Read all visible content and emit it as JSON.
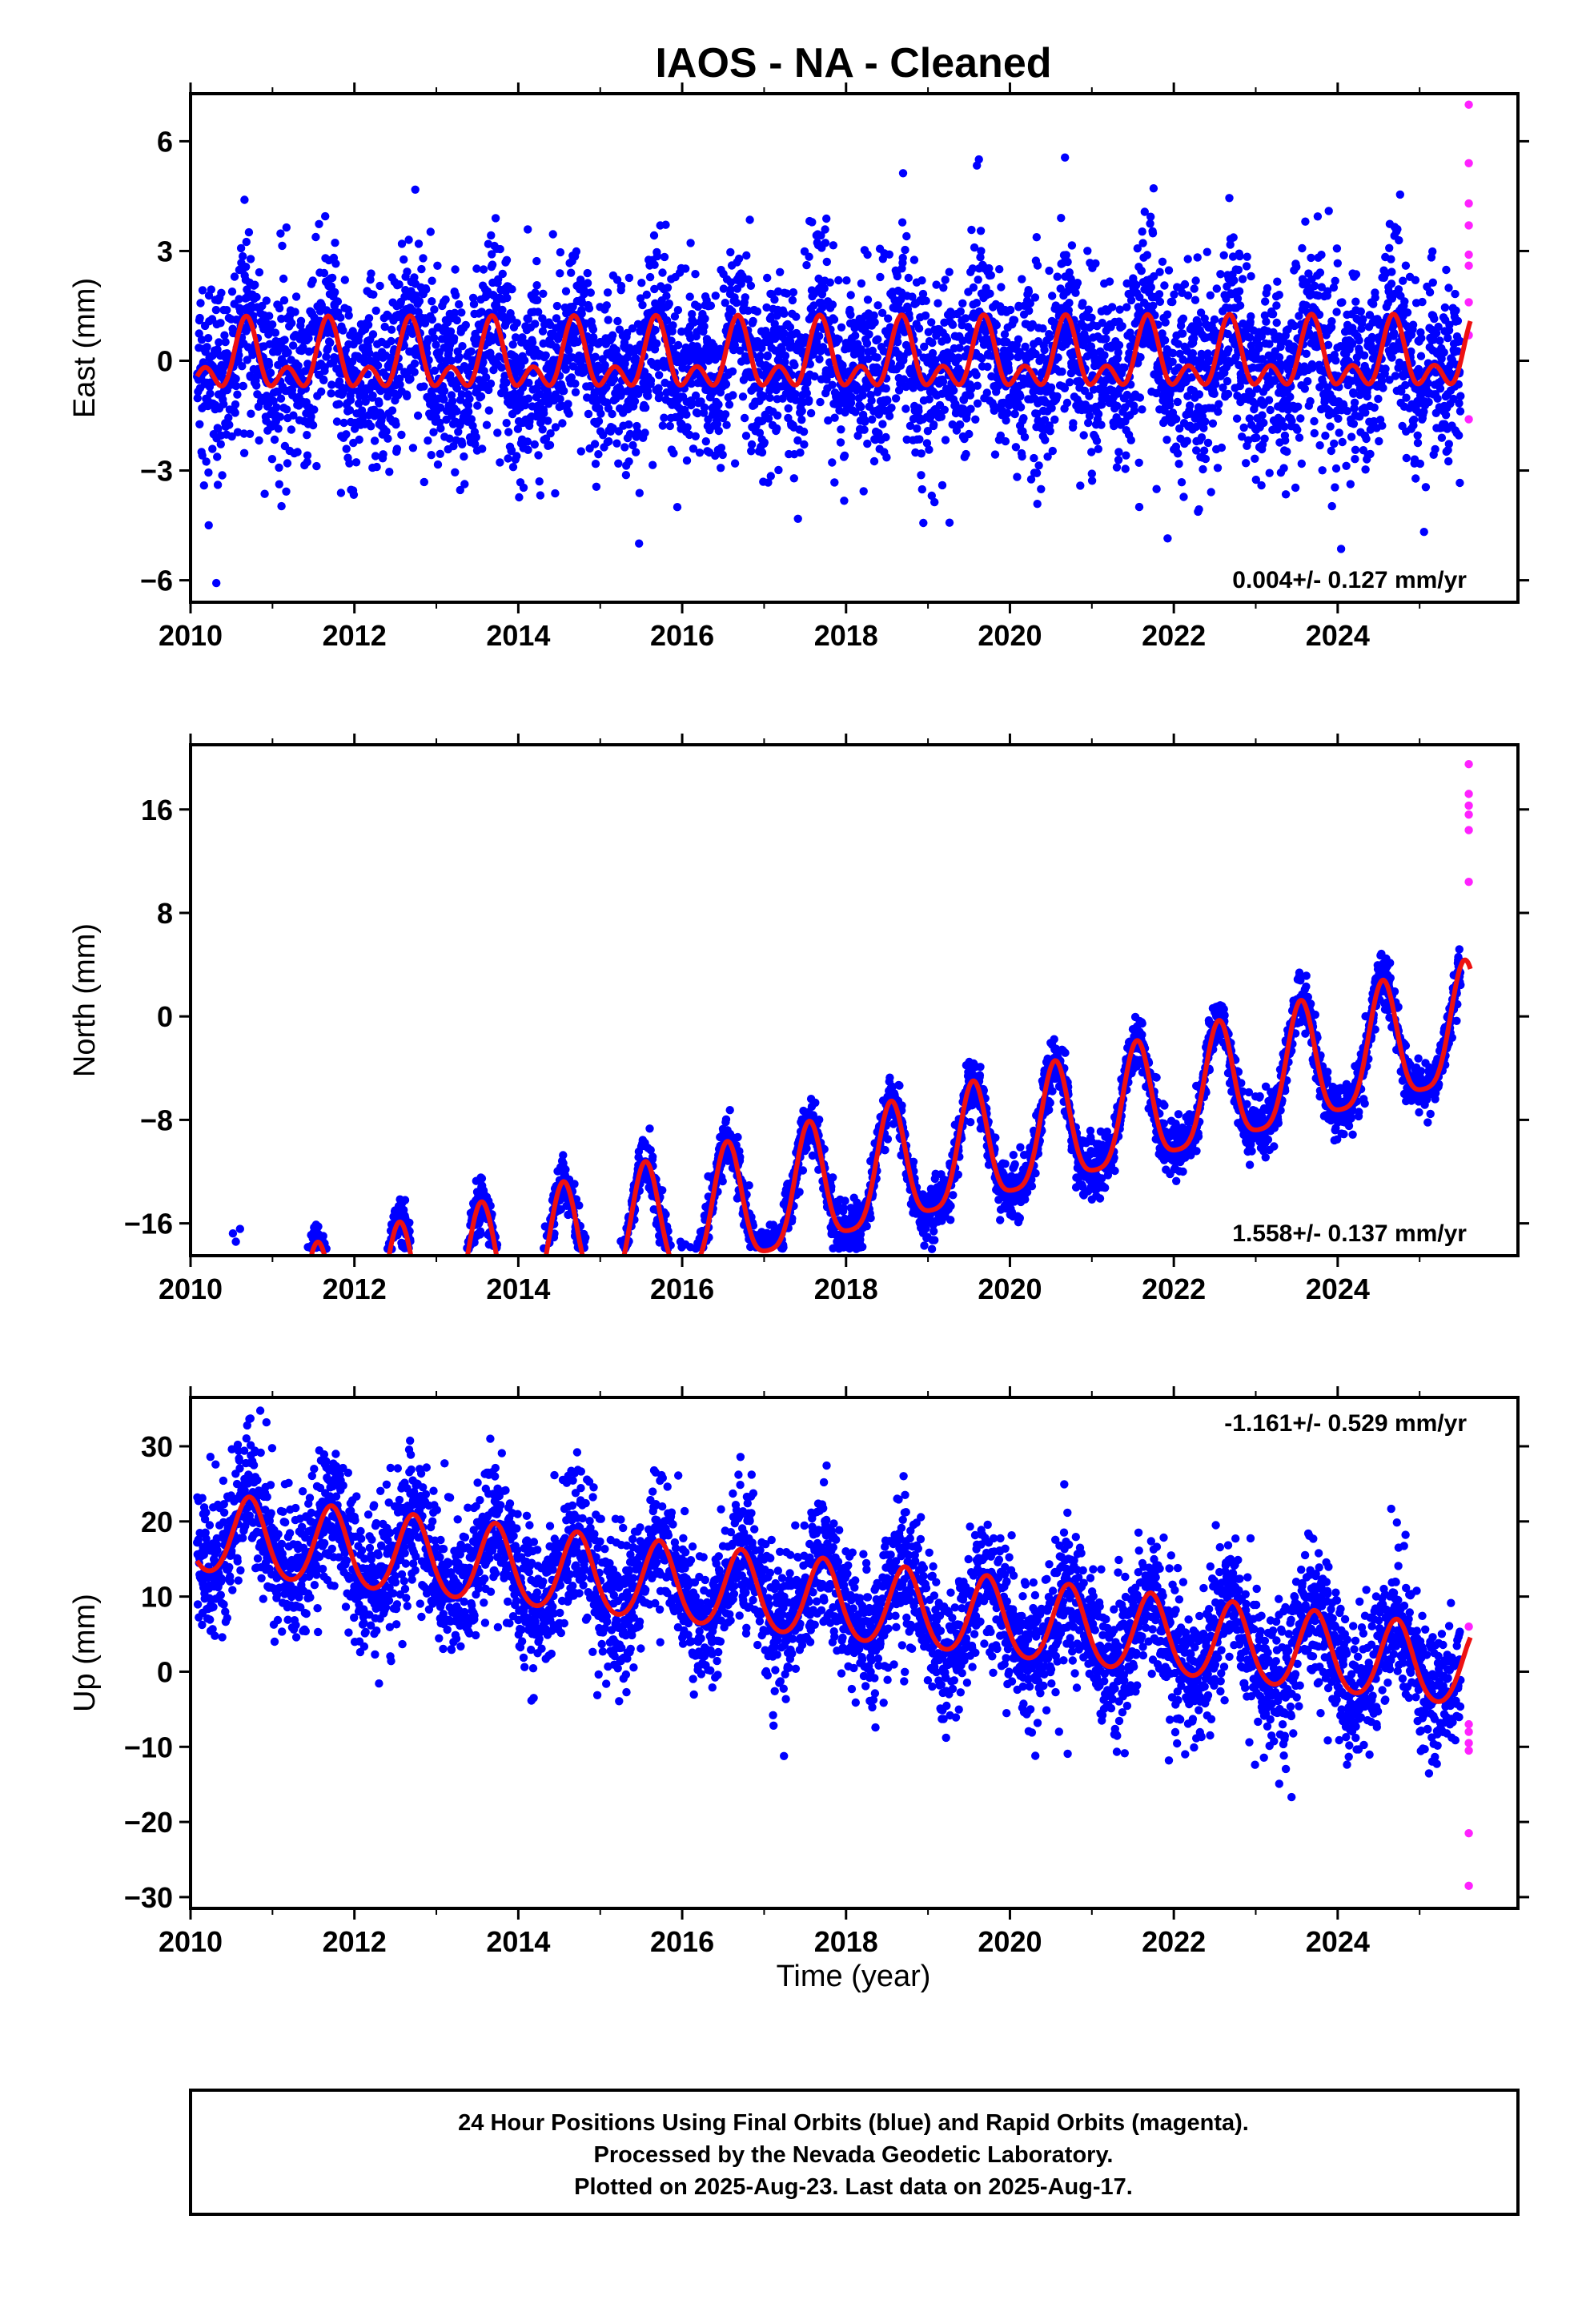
{
  "chart_data": [
    {
      "type": "scatter",
      "title": "IAOS  - NA - Cleaned",
      "ylabel": "East (mm)",
      "xlabel": "",
      "xlim": [
        2010.0,
        2026.2
      ],
      "ylim": [
        -6.6,
        7.3
      ],
      "xticks": [
        2010,
        2012,
        2014,
        2016,
        2018,
        2020,
        2022,
        2024
      ],
      "yticks": [
        -6,
        -3,
        0,
        3,
        6
      ],
      "ytick_labels": [
        "−6",
        "−3",
        "0",
        "3",
        "6"
      ],
      "rate_label": "0.004+/- 0.127 mm/yr",
      "rate_position": "bottom-right",
      "model": {
        "rate": 0.004,
        "offset": 0.0,
        "annual_amp": 0.7,
        "annual_phase": 0.0,
        "semiannual_amp": 0.55,
        "peak_time": 0.68,
        "x_start": 2010.08,
        "x_end": 2025.62
      },
      "final_orbits": {
        "x_start": 2010.08,
        "x_end": 2025.5,
        "scatter_sd": 1.25,
        "range": [
          -6.2,
          6.4
        ]
      },
      "rapid_orbits": {
        "x": [
          2025.6,
          2025.6,
          2025.6,
          2025.6,
          2025.6,
          2025.6,
          2025.6,
          2025.6,
          2025.6
        ],
        "y": [
          7.0,
          5.4,
          4.3,
          3.7,
          2.9,
          2.6,
          1.6,
          0.7,
          -1.6
        ]
      },
      "grid": false
    },
    {
      "type": "scatter",
      "title": "",
      "ylabel": "North (mm)",
      "xlabel": "",
      "xlim": [
        2010.0,
        2026.2
      ],
      "ylim": [
        -18.5,
        21.0
      ],
      "xticks": [
        2010,
        2012,
        2014,
        2016,
        2018,
        2020,
        2022,
        2024
      ],
      "yticks": [
        -16,
        -8,
        0,
        8,
        16
      ],
      "ytick_labels": [
        "−16",
        "−8",
        "0",
        "8",
        "16"
      ],
      "rate_label": "1.558+/- 0.137 mm/yr",
      "rate_position": "bottom-right",
      "model": {
        "rate": 1.558,
        "offset": -13.0,
        "annual_amp": 4.6,
        "semiannual_amp": 1.0,
        "peak_time": 0.55,
        "x_start": 2010.08,
        "x_end": 2025.62
      },
      "final_orbits": {
        "x_start": 2010.08,
        "x_end": 2025.5,
        "scatter_sd": 1.0,
        "range": [
          -18,
          21
        ]
      },
      "rapid_orbits": {
        "x": [
          2025.6,
          2025.6,
          2025.6,
          2025.6,
          2025.6,
          2025.6
        ],
        "y": [
          19.5,
          17.2,
          16.3,
          15.6,
          14.4,
          10.4
        ]
      },
      "grid": false
    },
    {
      "type": "scatter",
      "title": "",
      "ylabel": "Up (mm)",
      "xlabel": "Time (year)",
      "xlim": [
        2010.0,
        2026.2
      ],
      "ylim": [
        -31.5,
        36.5
      ],
      "xticks": [
        2010,
        2012,
        2014,
        2016,
        2018,
        2020,
        2022,
        2024
      ],
      "yticks": [
        -30,
        -20,
        -10,
        0,
        10,
        20,
        30
      ],
      "ytick_labels": [
        "−30",
        "−20",
        "−10",
        "0",
        "10",
        "20",
        "30"
      ],
      "rate_label": "-1.161+/- 0.529 mm/yr",
      "rate_position": "top-right",
      "model": {
        "rate": -1.161,
        "offset": 9.0,
        "annual_amp": 5.2,
        "semiannual_amp": 0.6,
        "peak_time": 0.72,
        "x_start": 2010.08,
        "x_end": 2025.62
      },
      "final_orbits": {
        "x_start": 2010.08,
        "x_end": 2025.5,
        "scatter_sd": 4.6,
        "range": [
          -30.5,
          35
        ]
      },
      "rapid_orbits": {
        "x": [
          2025.6,
          2025.6,
          2025.6,
          2025.6,
          2025.6,
          2025.6,
          2025.6
        ],
        "y": [
          6.0,
          -7.0,
          -8.0,
          -9.5,
          -10.5,
          -21.5,
          -28.5
        ]
      },
      "grid": false
    }
  ],
  "colors": {
    "final_orbits": "#0000ff",
    "rapid_orbits": "#ff22ff",
    "model": "#ee1111",
    "frame": "#000000"
  },
  "caption": {
    "line1": "24 Hour Positions Using Final Orbits (blue) and Rapid Orbits (magenta).",
    "line2": "Processed by the Nevada Geodetic Laboratory.",
    "line3": "Plotted on 2025-Aug-23. Last data on 2025-Aug-17."
  }
}
